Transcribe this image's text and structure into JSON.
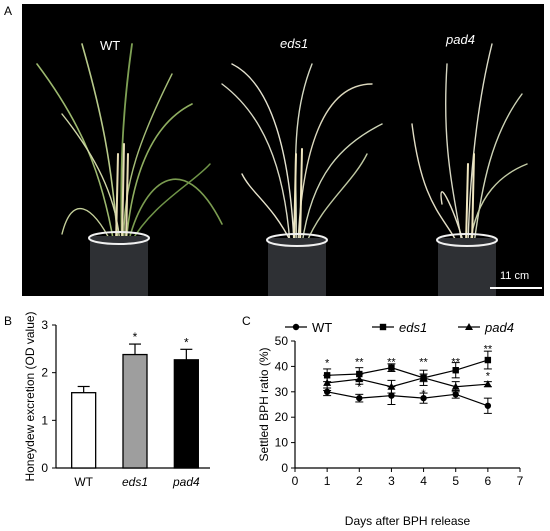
{
  "panel_a": {
    "letter": "A",
    "labels": [
      "WT",
      "eds1",
      "pad4"
    ],
    "scale_bar": "11 cm"
  },
  "panel_b": {
    "letter": "B"
  },
  "panel_c": {
    "letter": "C"
  },
  "chart_data": [
    {
      "type": "bar",
      "categories": [
        "WT",
        "eds1",
        "pad4"
      ],
      "values": [
        1.58,
        2.38,
        2.27
      ],
      "errors": [
        0.13,
        0.22,
        0.22
      ],
      "significance": [
        "",
        "*",
        "*"
      ],
      "bar_colors": [
        "#ffffff",
        "#9e9e9e",
        "#000000"
      ],
      "title": "",
      "xlabel": "",
      "ylabel": "Honeydew excretion (OD value)",
      "ylim": [
        0,
        3
      ],
      "yticks": [
        0,
        1,
        2,
        3
      ]
    },
    {
      "type": "line",
      "x": [
        1,
        2,
        3,
        4,
        5,
        6
      ],
      "series": [
        {
          "name": "WT",
          "marker": "circle",
          "values": [
            30,
            27.5,
            28.5,
            27.5,
            29,
            24.5
          ],
          "errors": [
            1.5,
            1.5,
            3.5,
            2,
            1.5,
            3
          ]
        },
        {
          "name": "eds1",
          "marker": "square",
          "values": [
            36.5,
            37,
            39.5,
            35.5,
            38.5,
            42.5
          ],
          "errors": [
            2.5,
            2.5,
            1.5,
            3,
            3,
            3.5
          ]
        },
        {
          "name": "pad4",
          "marker": "triangle",
          "values": [
            33.5,
            35,
            32,
            35.5,
            32,
            33
          ],
          "errors": [
            3,
            2,
            2.5,
            1.5,
            2,
            1
          ]
        }
      ],
      "significance": [
        {
          "x": 1,
          "label": "*",
          "y": 41.5
        },
        {
          "x": 1,
          "label": "*",
          "y": 32.5
        },
        {
          "x": 2,
          "label": "**",
          "y": 42
        },
        {
          "x": 2,
          "label": "*",
          "y": 32
        },
        {
          "x": 3,
          "label": "**",
          "y": 42
        },
        {
          "x": 4,
          "label": "**",
          "y": 42
        },
        {
          "x": 4,
          "label": "*",
          "y": 29.5
        },
        {
          "x": 5,
          "label": "**",
          "y": 42
        },
        {
          "x": 6,
          "label": "**",
          "y": 47
        },
        {
          "x": 6,
          "label": "*",
          "y": 36.5
        }
      ],
      "title": "",
      "xlabel": "Days after BPH release",
      "ylabel": "Settled BPH ratio (%)",
      "xlim": [
        0,
        7
      ],
      "ylim": [
        0,
        50
      ],
      "xticks": [
        0,
        1,
        2,
        3,
        4,
        5,
        6,
        7
      ],
      "yticks": [
        0,
        10,
        20,
        30,
        40,
        50
      ],
      "legend": "top"
    }
  ]
}
